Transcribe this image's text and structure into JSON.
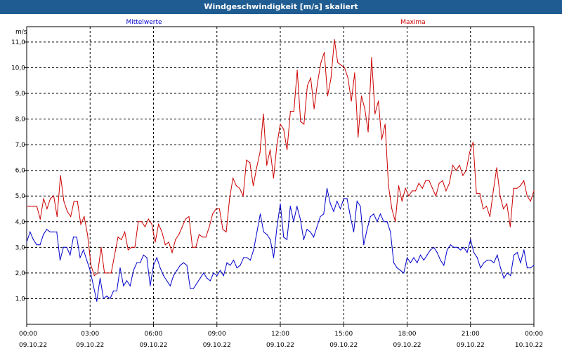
{
  "window": {
    "title": "Windgeschwindigkeit [m/s] skaliert"
  },
  "chart_data": {
    "type": "line",
    "title": "Windgeschwindigkeit [m/s] skaliert",
    "ylabel": "m/s",
    "xlabel": "",
    "ylim": [
      0.0,
      11.6
    ],
    "xlim": [
      0,
      24
    ],
    "grid": true,
    "yticks": [
      1.0,
      2.0,
      3.0,
      4.0,
      5.0,
      6.0,
      7.0,
      8.0,
      9.0,
      10.0,
      11.0
    ],
    "ytick_labels": [
      "1,0",
      "2,0",
      "3,0",
      "4,0",
      "5,0",
      "6,0",
      "7,0",
      "8,0",
      "9,0",
      "10,0",
      "11,0"
    ],
    "xticks": [
      0,
      3,
      6,
      9,
      12,
      15,
      18,
      21,
      24
    ],
    "xtick_labels": [
      {
        "time": "00:00",
        "date": "09.10.22"
      },
      {
        "time": "03:00",
        "date": "09.10.22"
      },
      {
        "time": "06:00",
        "date": "09.10.22"
      },
      {
        "time": "09:00",
        "date": "09.10.22"
      },
      {
        "time": "12:00",
        "date": "09.10.22"
      },
      {
        "time": "15:00",
        "date": "09.10.22"
      },
      {
        "time": "18:00",
        "date": "09.10.22"
      },
      {
        "time": "21:00",
        "date": "09.10.22"
      },
      {
        "time": "00:00",
        "date": "10.10.22"
      }
    ],
    "x_step_hours": 0.1667,
    "series": [
      {
        "name": "Mittelwerte",
        "color": "#0000cc",
        "values": [
          3.2,
          3.6,
          3.3,
          3.1,
          3.1,
          3.5,
          3.7,
          3.6,
          3.6,
          3.6,
          2.5,
          3.0,
          3.0,
          2.7,
          3.4,
          3.4,
          2.6,
          2.9,
          2.5,
          2.1,
          1.5,
          0.9,
          1.8,
          1.0,
          1.1,
          1.0,
          1.3,
          1.3,
          2.2,
          1.5,
          1.7,
          1.5,
          2.1,
          2.4,
          2.4,
          2.7,
          2.6,
          1.5,
          2.3,
          2.6,
          2.2,
          1.9,
          1.7,
          1.5,
          1.9,
          2.1,
          2.3,
          2.4,
          2.3,
          1.4,
          1.4,
          1.6,
          1.8,
          2.0,
          1.8,
          1.7,
          2.0,
          1.9,
          2.1,
          1.9,
          2.4,
          2.3,
          2.5,
          2.2,
          2.3,
          2.6,
          2.6,
          2.5,
          2.9,
          3.6,
          4.3,
          3.6,
          3.5,
          3.3,
          2.6,
          3.8,
          4.7,
          3.4,
          3.3,
          4.6,
          4.0,
          4.6,
          4.1,
          3.3,
          3.7,
          3.6,
          3.4,
          3.8,
          4.2,
          4.3,
          5.3,
          4.7,
          4.4,
          4.8,
          4.5,
          4.9,
          4.9,
          4.2,
          3.6,
          4.8,
          4.6,
          3.1,
          3.7,
          4.2,
          4.3,
          4.0,
          4.3,
          4.0,
          4.0,
          3.6,
          2.4,
          2.2,
          2.1,
          2.0,
          2.6,
          2.4,
          2.6,
          2.4,
          2.7,
          2.5,
          2.7,
          2.9,
          3.0,
          2.8,
          2.5,
          2.3,
          2.9,
          3.1,
          3.0,
          3.0,
          2.9,
          3.0,
          2.8,
          3.3,
          2.8,
          2.6,
          2.2,
          2.4,
          2.5,
          2.5,
          2.4,
          2.7,
          2.2,
          1.8,
          2.0,
          1.9,
          2.7,
          2.8,
          2.4,
          2.9,
          2.2,
          2.2,
          2.3
        ]
      },
      {
        "name": "Maxima",
        "color": "#cc0000",
        "values": [
          4.6,
          4.6,
          4.6,
          4.6,
          4.1,
          4.9,
          4.5,
          4.9,
          5.0,
          4.2,
          5.8,
          4.8,
          4.4,
          4.2,
          4.8,
          4.8,
          3.9,
          4.2,
          3.5,
          2.3,
          1.9,
          2.0,
          3.0,
          2.0,
          2.0,
          2.0,
          2.7,
          3.4,
          3.3,
          3.6,
          2.9,
          3.0,
          3.0,
          4.0,
          4.0,
          3.8,
          4.1,
          3.9,
          3.2,
          3.9,
          3.6,
          3.1,
          3.2,
          2.8,
          3.3,
          3.5,
          3.8,
          4.1,
          4.2,
          3.0,
          3.0,
          3.5,
          3.4,
          3.4,
          3.8,
          4.3,
          4.5,
          4.5,
          3.7,
          3.6,
          4.9,
          5.7,
          5.4,
          5.3,
          5.0,
          6.4,
          6.3,
          5.4,
          6.1,
          6.7,
          8.2,
          6.2,
          6.8,
          5.7,
          7.0,
          7.8,
          7.6,
          6.8,
          8.3,
          8.3,
          9.9,
          7.9,
          7.8,
          9.3,
          9.6,
          8.4,
          9.4,
          10.2,
          10.6,
          8.9,
          9.6,
          11.1,
          10.2,
          10.1,
          10.0,
          9.6,
          8.7,
          9.8,
          7.3,
          8.9,
          8.4,
          7.5,
          10.4,
          8.2,
          8.7,
          7.2,
          7.8,
          5.4,
          4.5,
          4.0,
          5.4,
          4.8,
          5.3,
          5.0,
          5.2,
          5.2,
          5.5,
          5.3,
          5.6,
          5.6,
          5.3,
          5.0,
          5.5,
          5.6,
          5.2,
          5.5,
          6.2,
          6.0,
          6.2,
          5.8,
          6.0,
          6.7,
          7.1,
          5.1,
          5.1,
          4.5,
          4.6,
          4.2,
          5.2,
          6.1,
          5.0,
          4.5,
          4.7,
          3.8,
          5.3,
          5.3,
          5.4,
          5.6,
          5.0,
          4.8,
          5.2
        ]
      }
    ]
  }
}
